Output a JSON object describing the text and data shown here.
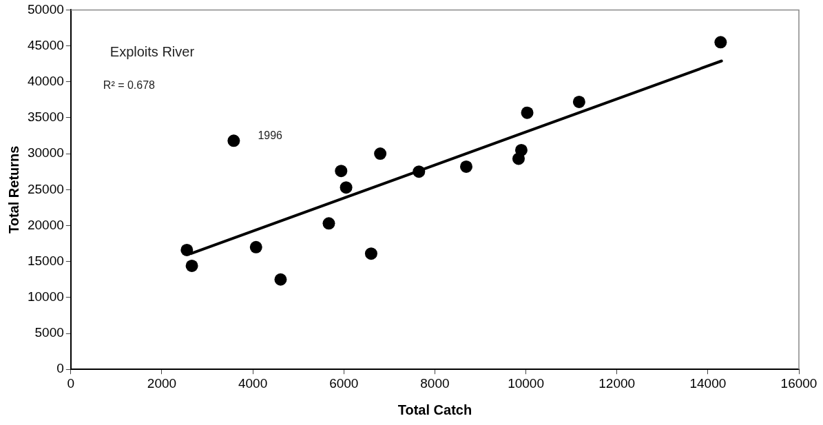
{
  "chart_data": {
    "type": "scatter",
    "xlabel": "Total Catch",
    "ylabel": "Total Returns",
    "x": [
      2550,
      2660,
      3580,
      4070,
      4610,
      5670,
      5940,
      6050,
      6600,
      6800,
      7650,
      8690,
      9840,
      9900,
      10030,
      11170,
      14280
    ],
    "series": [
      {
        "type": "scatter",
        "color": "#000000",
        "values": [
          16600,
          14400,
          31800,
          17000,
          12500,
          20300,
          27600,
          25300,
          16100,
          30000,
          27500,
          28200,
          29300,
          30500,
          35700,
          37200,
          45500
        ]
      },
      {
        "type": "line",
        "color": "#000000",
        "x": [
          2640,
          14300
        ],
        "values": [
          16100,
          42900
        ],
        "marker": "none"
      }
    ],
    "xlim": [
      0,
      16000
    ],
    "xticks": [
      0,
      2000,
      4000,
      6000,
      8000,
      10000,
      12000,
      14000,
      16000
    ],
    "ylim": [
      0,
      50000
    ],
    "yticks": [
      0,
      5000,
      10000,
      15000,
      20000,
      25000,
      30000,
      35000,
      40000,
      45000,
      50000
    ],
    "grid": false,
    "legend": false,
    "marker": "circle",
    "annotations": [
      "Exploits River",
      "R² = 0.678",
      {
        "text": "1996",
        "x": 3580,
        "y": 31800
      }
    ]
  }
}
